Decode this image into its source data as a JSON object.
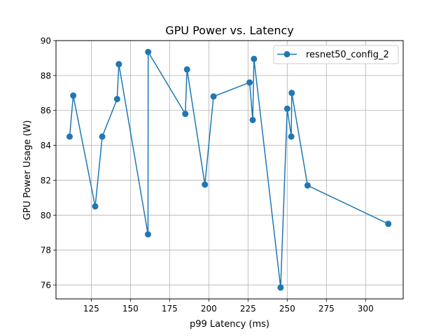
{
  "chart_data": {
    "type": "line",
    "title": "GPU Power vs. Latency",
    "xlabel": "p99 Latency (ms)",
    "ylabel": "GPU Power Usage (W)",
    "xlim": [
      102.5,
      324
    ],
    "ylim": [
      75.2,
      90
    ],
    "xticks": [
      125,
      150,
      175,
      200,
      225,
      250,
      275,
      300
    ],
    "yticks": [
      76,
      78,
      80,
      82,
      84,
      86,
      88,
      90
    ],
    "grid": true,
    "legend_position": "top-right",
    "series": [
      {
        "name": "resnet50_config_2",
        "color": "#1f77b4",
        "marker": "circle",
        "x": [
          111.2,
          113.5,
          127.5,
          132.0,
          141.5,
          142.6,
          161.2,
          161.3,
          185.0,
          186.1,
          197.5,
          203.0,
          226.0,
          228.0,
          228.8,
          245.8,
          250.0,
          252.6,
          252.9,
          263.0,
          314.5
        ],
        "y": [
          84.5,
          86.85,
          80.5,
          84.5,
          86.65,
          88.65,
          78.9,
          89.35,
          85.8,
          88.35,
          81.75,
          86.8,
          87.6,
          85.45,
          88.95,
          75.85,
          86.1,
          84.5,
          87.0,
          81.7,
          79.5
        ]
      }
    ]
  }
}
